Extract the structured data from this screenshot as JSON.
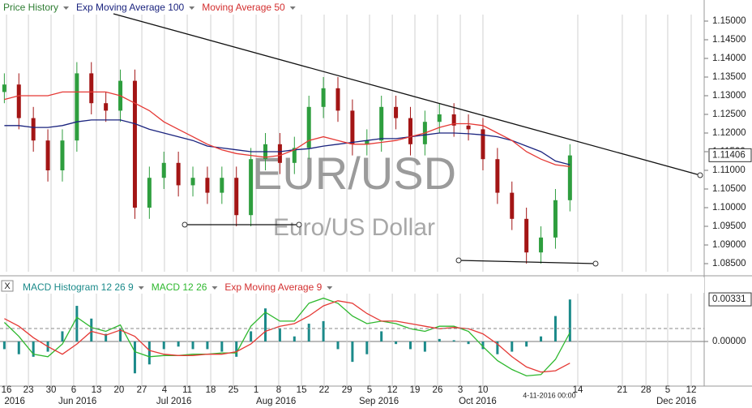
{
  "chart_data": [
    {
      "type": "candlestick",
      "legend": [
        {
          "name": "Price History",
          "color": "#2e7d32"
        },
        {
          "name": "Exp Moving Average 100",
          "color": "#1a237e"
        },
        {
          "name": "Moving Average 50",
          "color": "#d32f2f"
        }
      ],
      "watermark": "EUR/USD",
      "watermark_subtitle": "Euro/US Dollar",
      "categories": [
        null,
        null,
        null,
        null,
        null,
        null,
        null,
        null,
        null,
        null,
        null,
        null,
        null,
        null,
        null,
        null,
        null,
        null,
        null,
        null,
        null,
        null,
        null,
        null,
        null,
        null,
        null,
        null,
        null,
        null,
        null,
        null,
        null,
        null,
        null,
        null,
        null,
        null,
        null,
        null
      ],
      "open": [
        1.131,
        1.133,
        1.124,
        1.118,
        1.11,
        1.118,
        1.136,
        1.128,
        1.126,
        1.134,
        1.1,
        1.108,
        1.112,
        1.106,
        1.108,
        1.104,
        1.108,
        1.098,
        1.113,
        1.117,
        1.112,
        1.116,
        1.127,
        1.132,
        1.126,
        1.117,
        1.118,
        1.127,
        1.124,
        1.117,
        1.123,
        1.125,
        1.122,
        1.121,
        1.113,
        1.104,
        1.097,
        1.088,
        1.092,
        1.102
      ],
      "high": [
        1.136,
        1.136,
        1.127,
        1.121,
        1.121,
        1.139,
        1.139,
        1.131,
        1.137,
        1.137,
        1.111,
        1.115,
        1.115,
        1.111,
        1.111,
        1.111,
        1.111,
        1.116,
        1.12,
        1.12,
        1.119,
        1.13,
        1.135,
        1.135,
        1.129,
        1.121,
        1.13,
        1.13,
        1.127,
        1.126,
        1.128,
        1.128,
        1.125,
        1.124,
        1.116,
        1.107,
        1.1,
        1.095,
        1.105,
        1.117
      ],
      "low": [
        1.128,
        1.121,
        1.115,
        1.107,
        1.107,
        1.115,
        1.125,
        1.123,
        1.123,
        1.097,
        1.097,
        1.105,
        1.103,
        1.103,
        1.101,
        1.101,
        1.095,
        1.095,
        1.11,
        1.109,
        1.109,
        1.113,
        1.124,
        1.123,
        1.114,
        1.114,
        1.115,
        1.121,
        1.114,
        1.114,
        1.12,
        1.119,
        1.118,
        1.11,
        1.101,
        1.094,
        1.085,
        1.085,
        1.089,
        1.099
      ],
      "close": [
        1.133,
        1.124,
        1.118,
        1.11,
        1.118,
        1.136,
        1.128,
        1.126,
        1.134,
        1.1,
        1.108,
        1.112,
        1.106,
        1.108,
        1.104,
        1.108,
        1.098,
        1.113,
        1.117,
        1.112,
        1.116,
        1.127,
        1.132,
        1.126,
        1.117,
        1.118,
        1.127,
        1.124,
        1.117,
        1.123,
        1.125,
        1.122,
        1.121,
        1.113,
        1.104,
        1.097,
        1.088,
        1.092,
        1.102,
        1.114
      ],
      "up_color": "#2e9e3e",
      "down_color": "#a31515",
      "series": [
        {
          "name": "Exp Moving Average 100",
          "color": "#1a237e",
          "values": [
            1.122,
            1.122,
            1.1215,
            1.1215,
            1.122,
            1.123,
            1.1235,
            1.1235,
            1.1235,
            1.1225,
            1.121,
            1.12,
            1.119,
            1.118,
            1.1165,
            1.116,
            1.1155,
            1.115,
            1.115,
            1.115,
            1.1155,
            1.1158,
            1.1165,
            1.117,
            1.1175,
            1.118,
            1.1185,
            1.1185,
            1.119,
            1.1195,
            1.12,
            1.12,
            1.1198,
            1.1195,
            1.119,
            1.118,
            1.1165,
            1.115,
            1.1125,
            1.1115
          ]
        },
        {
          "name": "Moving Average 50",
          "color": "#e53935",
          "values": [
            1.129,
            1.13,
            1.13,
            1.13,
            1.131,
            1.131,
            1.131,
            1.131,
            1.13,
            1.128,
            1.126,
            1.123,
            1.121,
            1.119,
            1.117,
            1.1155,
            1.1145,
            1.114,
            1.1135,
            1.114,
            1.1155,
            1.118,
            1.119,
            1.118,
            1.117,
            1.117,
            1.1175,
            1.118,
            1.119,
            1.12,
            1.1215,
            1.1225,
            1.1225,
            1.122,
            1.12,
            1.118,
            1.115,
            1.113,
            1.1115,
            1.111
          ]
        }
      ],
      "xlim": [
        -0.3,
        48.2
      ],
      "ylim": [
        1.08283,
        1.15174
      ],
      "yticks": [
        {
          "value": 1.15,
          "label": "1.15000"
        },
        {
          "value": 1.145,
          "label": "1.14500"
        },
        {
          "value": 1.14,
          "label": "1.14000"
        },
        {
          "value": 1.135,
          "label": "1.13500"
        },
        {
          "value": 1.13,
          "label": "1.13000"
        },
        {
          "value": 1.125,
          "label": "1.12500"
        },
        {
          "value": 1.12,
          "label": "1.12000"
        },
        {
          "value": 1.115,
          "label": "1.11500"
        },
        {
          "value": 1.11,
          "label": "1.11000"
        },
        {
          "value": 1.105,
          "label": "1.10500"
        },
        {
          "value": 1.1,
          "label": "1.10000"
        },
        {
          "value": 1.095,
          "label": "1.09500"
        },
        {
          "value": 1.09,
          "label": "1.09000"
        },
        {
          "value": 1.085,
          "label": "1.08500"
        }
      ],
      "last_value": {
        "value": 1.11406,
        "label": "1.11406"
      }
    },
    {
      "type": "macd",
      "legend": [
        {
          "name": "MACD Histogram 12 26 9",
          "color": "#1b8a8a"
        },
        {
          "name": "MACD 12 26",
          "color": "#2eb82e"
        },
        {
          "name": "Exp Moving Average 9",
          "color": "#d32f2f"
        }
      ],
      "close_button": "X",
      "categories": [
        null,
        null,
        null,
        null,
        null,
        null,
        null,
        null,
        null,
        null,
        null,
        null,
        null,
        null,
        null,
        null,
        null,
        null,
        null,
        null,
        null,
        null,
        null,
        null,
        null,
        null,
        null,
        null,
        null,
        null,
        null,
        null,
        null,
        null,
        null,
        null,
        null,
        null,
        null,
        null
      ],
      "series": [
        {
          "name": "MACD Histogram 12 26 9",
          "kind": "bar",
          "color": "#1b8a8a",
          "values": [
            -0.0006,
            -0.001,
            -0.0012,
            -0.0008,
            0.0008,
            0.0028,
            0.0018,
            0.0006,
            0.001,
            -0.0025,
            -0.0018,
            -0.0006,
            -0.0004,
            -0.0006,
            -0.0006,
            -0.0008,
            -0.0012,
            0.0008,
            0.0026,
            0.001,
            0.0004,
            0.0014,
            0.0016,
            -0.0006,
            -0.0016,
            -0.001,
            0.0008,
            -0.0002,
            -0.0006,
            -0.0008,
            0.0002,
            0.0001,
            -0.0002,
            -0.0006,
            -0.001,
            -0.0008,
            -0.0004,
            0.0004,
            0.002,
            0.0033
          ]
        },
        {
          "name": "MACD 12 26",
          "kind": "line",
          "color": "#2eb82e",
          "values": [
            0.0015,
            0.0004,
            -0.001,
            -0.0012,
            -0.0002,
            0.0019,
            0.0011,
            0.0008,
            0.0013,
            -0.0008,
            -0.0012,
            -0.0011,
            -0.0011,
            -0.001,
            -0.001,
            -0.0009,
            -0.0009,
            0.0012,
            0.0023,
            0.0016,
            0.0016,
            0.003,
            0.0034,
            0.003,
            0.002,
            0.0014,
            0.0016,
            0.0014,
            0.001,
            0.0008,
            0.0012,
            0.0012,
            0.0008,
            -0.0004,
            -0.0015,
            -0.0022,
            -0.0027,
            -0.0026,
            -0.0014,
            0.0007
          ]
        },
        {
          "name": "Exp Moving Average 9",
          "kind": "line",
          "color": "#e53935",
          "values": [
            0.0018,
            0.0012,
            0.0003,
            -0.0004,
            -0.001,
            -0.0002,
            0.0008,
            0.0005,
            0.0009,
            0.0004,
            -0.0007,
            -0.001,
            -0.0011,
            -0.0011,
            -0.001,
            -0.001,
            -0.0008,
            -0.0002,
            0.0008,
            0.0012,
            0.0014,
            0.002,
            0.0028,
            0.0032,
            0.003,
            0.0022,
            0.0016,
            0.0016,
            0.0014,
            0.0012,
            0.001,
            0.0011,
            0.001,
            0.0006,
            -0.0002,
            -0.0012,
            -0.002,
            -0.0024,
            -0.0023,
            -0.0017
          ]
        }
      ],
      "xlim": [
        -0.3,
        48.2
      ],
      "ylim": [
        -0.00344,
        0.00376
      ],
      "yticks": [
        {
          "value": 0,
          "label": "0.00000"
        }
      ],
      "last_value": {
        "value": 0.00331,
        "label": "0.00331"
      },
      "xticks": [
        {
          "value": 0.15,
          "label": "16"
        },
        {
          "value": 1.66,
          "label": "23"
        },
        {
          "value": 3.22,
          "label": "30"
        },
        {
          "value": 4.78,
          "label": "6"
        },
        {
          "value": 6.35,
          "label": "13"
        },
        {
          "value": 7.91,
          "label": "20"
        },
        {
          "value": 9.48,
          "label": "27"
        },
        {
          "value": 11.04,
          "label": "4"
        },
        {
          "value": 12.61,
          "label": "11"
        },
        {
          "value": 14.23,
          "label": "18"
        },
        {
          "value": 15.79,
          "label": "25"
        },
        {
          "value": 17.36,
          "label": "1"
        },
        {
          "value": 18.92,
          "label": "8"
        },
        {
          "value": 20.49,
          "label": "15"
        },
        {
          "value": 22.05,
          "label": "22"
        },
        {
          "value": 23.62,
          "label": "29"
        },
        {
          "value": 25.18,
          "label": "5"
        },
        {
          "value": 26.75,
          "label": "12"
        },
        {
          "value": 28.31,
          "label": "19"
        },
        {
          "value": 29.87,
          "label": "26"
        },
        {
          "value": 31.44,
          "label": "3"
        },
        {
          "value": 33.0,
          "label": "10"
        },
        {
          "value": 39.54,
          "label": "14"
        },
        {
          "value": 42.61,
          "label": "21"
        },
        {
          "value": 44.24,
          "label": "28"
        },
        {
          "value": 45.74,
          "label": "5"
        },
        {
          "value": 47.36,
          "label": "12"
        }
      ],
      "month_ticks": [
        {
          "value": 0.0,
          "label": "2016"
        },
        {
          "value": 3.72,
          "label": "Jun 2016"
        },
        {
          "value": 10.48,
          "label": "Jul 2016"
        },
        {
          "value": 17.36,
          "label": "Aug 2016"
        },
        {
          "value": 24.45,
          "label": "Sep 2016"
        },
        {
          "value": 31.33,
          "label": "Oct 2016"
        },
        {
          "value": 44.96,
          "label": "Dec 2016"
        }
      ],
      "crosshair_label": "4-11-2016 00:00"
    }
  ]
}
